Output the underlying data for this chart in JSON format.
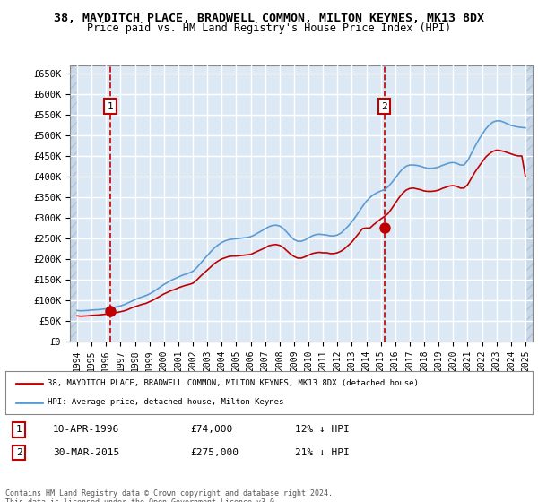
{
  "title": "38, MAYDITCH PLACE, BRADWELL COMMON, MILTON KEYNES, MK13 8DX",
  "subtitle": "Price paid vs. HM Land Registry's House Price Index (HPI)",
  "xlabel": "",
  "ylabel": "",
  "ylim": [
    0,
    670000
  ],
  "yticks": [
    0,
    50000,
    100000,
    150000,
    200000,
    250000,
    300000,
    350000,
    400000,
    450000,
    500000,
    550000,
    600000,
    650000
  ],
  "ytick_labels": [
    "£0",
    "£50K",
    "£100K",
    "£150K",
    "£200K",
    "£250K",
    "£300K",
    "£350K",
    "£400K",
    "£450K",
    "£500K",
    "£550K",
    "£600K",
    "£650K"
  ],
  "xlim_start": 1993.5,
  "xlim_end": 2025.5,
  "xticks": [
    1994,
    1995,
    1996,
    1997,
    1998,
    1999,
    2000,
    2001,
    2002,
    2003,
    2004,
    2005,
    2006,
    2007,
    2008,
    2009,
    2010,
    2011,
    2012,
    2013,
    2014,
    2015,
    2016,
    2017,
    2018,
    2019,
    2020,
    2021,
    2022,
    2023,
    2024,
    2025
  ],
  "background_color": "#dce9f5",
  "hatch_color": "#b0c4de",
  "grid_color": "#ffffff",
  "line_color_hpi": "#5b9bd5",
  "line_color_price": "#c00000",
  "sale1_x": 1996.28,
  "sale1_y": 74000,
  "sale2_x": 2015.25,
  "sale2_y": 275000,
  "legend_label1": "38, MAYDITCH PLACE, BRADWELL COMMON, MILTON KEYNES, MK13 8DX (detached house)",
  "legend_label2": "HPI: Average price, detached house, Milton Keynes",
  "annotation1_label": "1",
  "annotation2_label": "2",
  "sale1_date": "10-APR-1996",
  "sale1_price": "£74,000",
  "sale1_hpi": "12% ↓ HPI",
  "sale2_date": "30-MAR-2015",
  "sale2_price": "£275,000",
  "sale2_hpi": "21% ↓ HPI",
  "copyright_text": "Contains HM Land Registry data © Crown copyright and database right 2024.\nThis data is licensed under the Open Government Licence v3.0.",
  "hpi_data_x": [
    1994,
    1994.25,
    1994.5,
    1994.75,
    1995,
    1995.25,
    1995.5,
    1995.75,
    1996,
    1996.25,
    1996.5,
    1996.75,
    1997,
    1997.25,
    1997.5,
    1997.75,
    1998,
    1998.25,
    1998.5,
    1998.75,
    1999,
    1999.25,
    1999.5,
    1999.75,
    2000,
    2000.25,
    2000.5,
    2000.75,
    2001,
    2001.25,
    2001.5,
    2001.75,
    2002,
    2002.25,
    2002.5,
    2002.75,
    2003,
    2003.25,
    2003.5,
    2003.75,
    2004,
    2004.25,
    2004.5,
    2004.75,
    2005,
    2005.25,
    2005.5,
    2005.75,
    2006,
    2006.25,
    2006.5,
    2006.75,
    2007,
    2007.25,
    2007.5,
    2007.75,
    2008,
    2008.25,
    2008.5,
    2008.75,
    2009,
    2009.25,
    2009.5,
    2009.75,
    2010,
    2010.25,
    2010.5,
    2010.75,
    2011,
    2011.25,
    2011.5,
    2011.75,
    2012,
    2012.25,
    2012.5,
    2012.75,
    2013,
    2013.25,
    2013.5,
    2013.75,
    2014,
    2014.25,
    2014.5,
    2014.75,
    2015,
    2015.25,
    2015.5,
    2015.75,
    2016,
    2016.25,
    2016.5,
    2016.75,
    2017,
    2017.25,
    2017.5,
    2017.75,
    2018,
    2018.25,
    2018.5,
    2018.75,
    2019,
    2019.25,
    2019.5,
    2019.75,
    2020,
    2020.25,
    2020.5,
    2020.75,
    2021,
    2021.25,
    2021.5,
    2021.75,
    2022,
    2022.25,
    2022.5,
    2022.75,
    2023,
    2023.25,
    2023.5,
    2023.75,
    2024,
    2024.25,
    2024.5,
    2024.75,
    2025
  ],
  "hpi_data_y": [
    75000,
    74000,
    74500,
    75000,
    76000,
    76500,
    77000,
    78000,
    79000,
    80000,
    82000,
    84000,
    86000,
    89000,
    93000,
    97000,
    101000,
    105000,
    108000,
    111000,
    115000,
    120000,
    126000,
    132000,
    138000,
    143000,
    148000,
    152000,
    156000,
    160000,
    163000,
    166000,
    170000,
    178000,
    188000,
    198000,
    208000,
    218000,
    227000,
    234000,
    240000,
    244000,
    247000,
    248000,
    249000,
    250000,
    251000,
    252000,
    254000,
    258000,
    263000,
    268000,
    273000,
    278000,
    281000,
    282000,
    280000,
    274000,
    265000,
    255000,
    247000,
    243000,
    243000,
    246000,
    251000,
    256000,
    259000,
    260000,
    259000,
    258000,
    256000,
    256000,
    258000,
    263000,
    271000,
    280000,
    290000,
    302000,
    315000,
    328000,
    340000,
    349000,
    356000,
    361000,
    365000,
    368000,
    375000,
    385000,
    396000,
    408000,
    418000,
    425000,
    428000,
    428000,
    427000,
    425000,
    422000,
    420000,
    420000,
    421000,
    423000,
    427000,
    430000,
    433000,
    434000,
    432000,
    428000,
    428000,
    438000,
    455000,
    472000,
    488000,
    502000,
    515000,
    525000,
    532000,
    535000,
    535000,
    532000,
    528000,
    524000,
    522000,
    520000,
    519000,
    518000
  ],
  "price_data_x": [
    1994,
    1994.25,
    1994.5,
    1994.75,
    1995,
    1995.25,
    1995.5,
    1995.75,
    1996,
    1996.25,
    1996.5,
    1996.75,
    1997,
    1997.25,
    1997.5,
    1997.75,
    1998,
    1998.25,
    1998.5,
    1998.75,
    1999,
    1999.25,
    1999.5,
    1999.75,
    2000,
    2000.25,
    2000.5,
    2000.75,
    2001,
    2001.25,
    2001.5,
    2001.75,
    2002,
    2002.25,
    2002.5,
    2002.75,
    2003,
    2003.25,
    2003.5,
    2003.75,
    2004,
    2004.25,
    2004.5,
    2004.75,
    2005,
    2005.25,
    2005.5,
    2005.75,
    2006,
    2006.25,
    2006.5,
    2006.75,
    2007,
    2007.25,
    2007.5,
    2007.75,
    2008,
    2008.25,
    2008.5,
    2008.75,
    2009,
    2009.25,
    2009.5,
    2009.75,
    2010,
    2010.25,
    2010.5,
    2010.75,
    2011,
    2011.25,
    2011.5,
    2011.75,
    2012,
    2012.25,
    2012.5,
    2012.75,
    2013,
    2013.25,
    2013.5,
    2013.75,
    2014,
    2014.25,
    2014.5,
    2014.75,
    2015,
    2015.25,
    2015.5,
    2015.75,
    2016,
    2016.25,
    2016.5,
    2016.75,
    2017,
    2017.25,
    2017.5,
    2017.75,
    2018,
    2018.25,
    2018.5,
    2018.75,
    2019,
    2019.25,
    2019.5,
    2019.75,
    2020,
    2020.25,
    2020.5,
    2020.75,
    2021,
    2021.25,
    2021.5,
    2021.75,
    2022,
    2022.25,
    2022.5,
    2022.75,
    2023,
    2023.25,
    2023.5,
    2023.75,
    2024,
    2024.25,
    2024.5,
    2024.75,
    2025
  ],
  "price_data_y": [
    62000,
    61000,
    61500,
    62000,
    63000,
    63500,
    64000,
    65000,
    66000,
    74000,
    68000,
    70000,
    72000,
    74000,
    77000,
    81000,
    84000,
    87000,
    90000,
    92000,
    96000,
    100000,
    105000,
    110000,
    115000,
    119000,
    123000,
    126000,
    130000,
    133000,
    136000,
    138000,
    141000,
    148000,
    157000,
    165000,
    173000,
    181000,
    189000,
    195000,
    200000,
    203000,
    206000,
    207000,
    207000,
    208000,
    209000,
    210000,
    211000,
    215000,
    219000,
    223000,
    227000,
    232000,
    234000,
    235000,
    233000,
    228000,
    220000,
    212000,
    206000,
    202000,
    202000,
    205000,
    209000,
    213000,
    215000,
    216000,
    215000,
    215000,
    213000,
    213000,
    215000,
    219000,
    225000,
    233000,
    241000,
    252000,
    263000,
    274000,
    275000,
    275000,
    283000,
    290000,
    297000,
    303000,
    310000,
    322000,
    335000,
    348000,
    359000,
    367000,
    371000,
    372000,
    370000,
    368000,
    365000,
    364000,
    364000,
    365000,
    367000,
    371000,
    374000,
    377000,
    378000,
    376000,
    372000,
    372000,
    380000,
    395000,
    410000,
    423000,
    435000,
    447000,
    455000,
    461000,
    464000,
    463000,
    461000,
    458000,
    455000,
    452000,
    450000,
    450000,
    400000
  ]
}
